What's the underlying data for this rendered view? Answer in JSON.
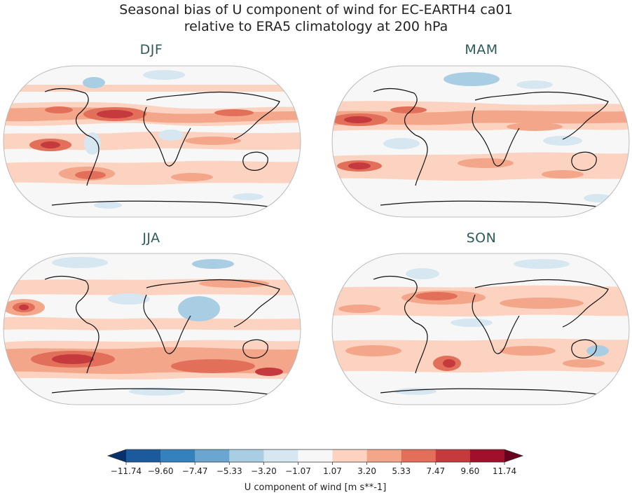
{
  "title_line1": "Seasonal bias of U component of wind for EC-EARTH4 ca01",
  "title_line2": "relative to ERA5 climatology at 200 hPa",
  "panels": [
    {
      "season": "DJF"
    },
    {
      "season": "MAM"
    },
    {
      "season": "JJA"
    },
    {
      "season": "SON"
    }
  ],
  "colorbar": {
    "label": "U component of wind [m s**-1]",
    "levels": [
      "−11.74",
      "−9.60",
      "−7.47",
      "−5.33",
      "−3.20",
      "−1.07",
      "1.07",
      "3.20",
      "5.33",
      "7.47",
      "9.60",
      "11.74"
    ],
    "colors": [
      "#1c5a9e",
      "#3581be",
      "#6aa6d0",
      "#a9cde3",
      "#d6e7f1",
      "#f7f7f7",
      "#fbd3c0",
      "#f3a68a",
      "#e26f5a",
      "#c43a3d",
      "#a0102b"
    ],
    "under_color": "#08306b",
    "over_color": "#67001f"
  },
  "land_color": "none",
  "ocean_color": "#f7f7f7"
}
